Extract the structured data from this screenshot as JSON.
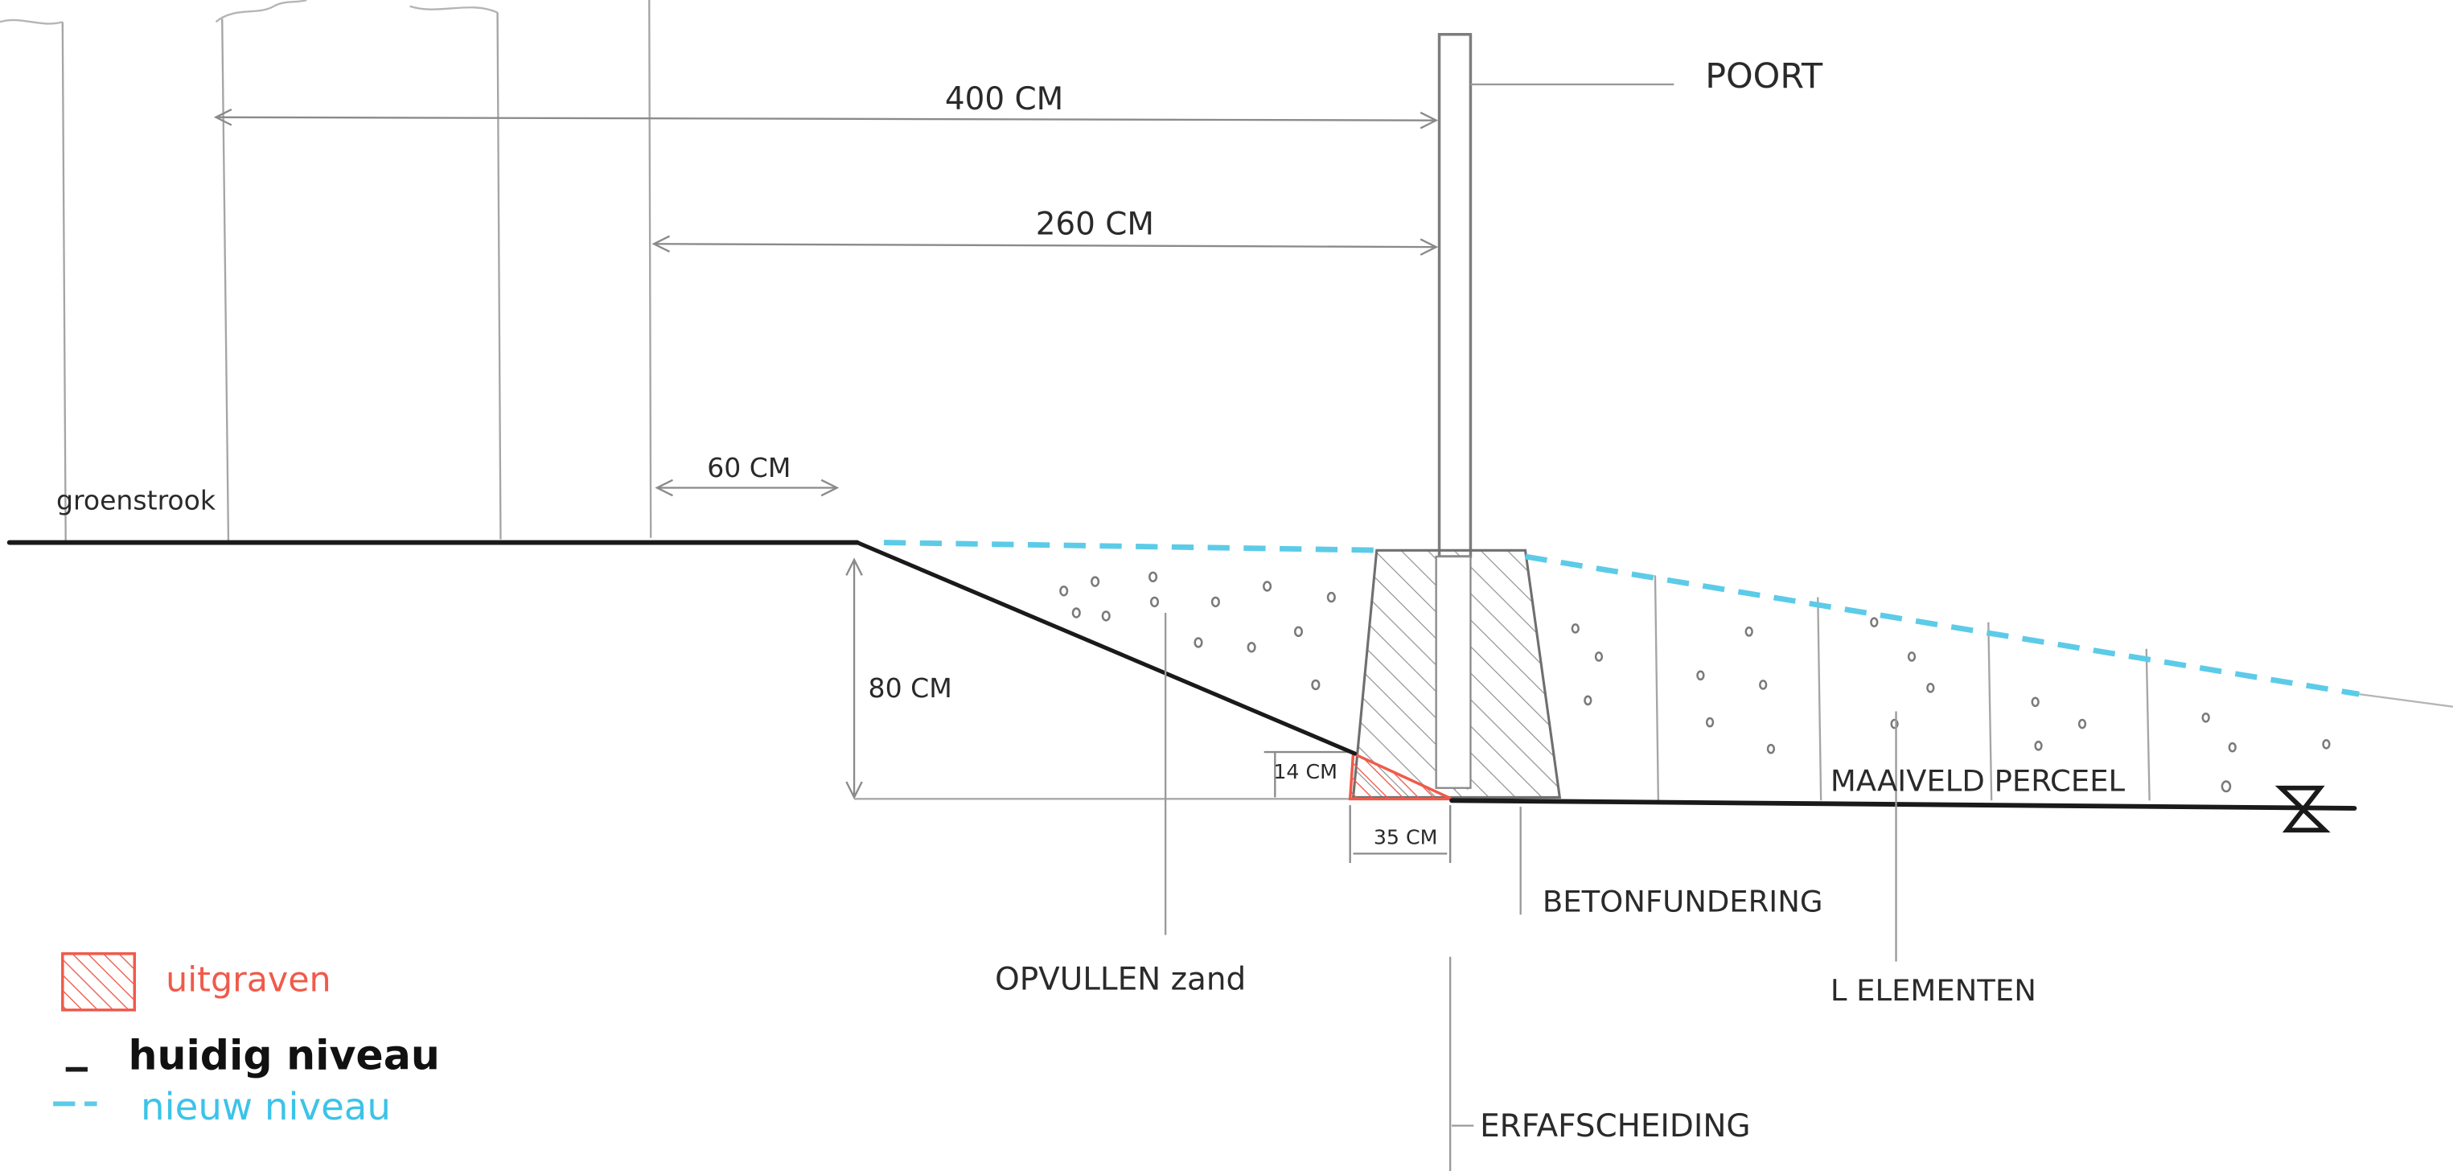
{
  "labels": {
    "poort": "POORT",
    "dim_400": "400 CM",
    "dim_260": "260 CM",
    "dim_60": "60 CM",
    "dim_80": "80 CM",
    "dim_14": "14 CM",
    "dim_35": "35 CM",
    "groenstrook": "groenstrook",
    "opvullen_zand": "OPVULLEN zand",
    "betonfundering": "BETONFUNDERING",
    "l_elementen": "L ELEMENTEN",
    "maaiveld": "MAAIVELD PERCEEL",
    "erfafscheiding": "ERFAFSCHEIDING"
  },
  "legend": {
    "uitgraven": "uitgraven",
    "huidig_niveau": "huidig niveau",
    "nieuw_niveau": "nieuw niveau"
  },
  "colors": {
    "current_level": "#1a1a1a",
    "new_level": "#5ccbe8",
    "excavate": "#f05a4a",
    "pencil": "#9a9a9a"
  }
}
